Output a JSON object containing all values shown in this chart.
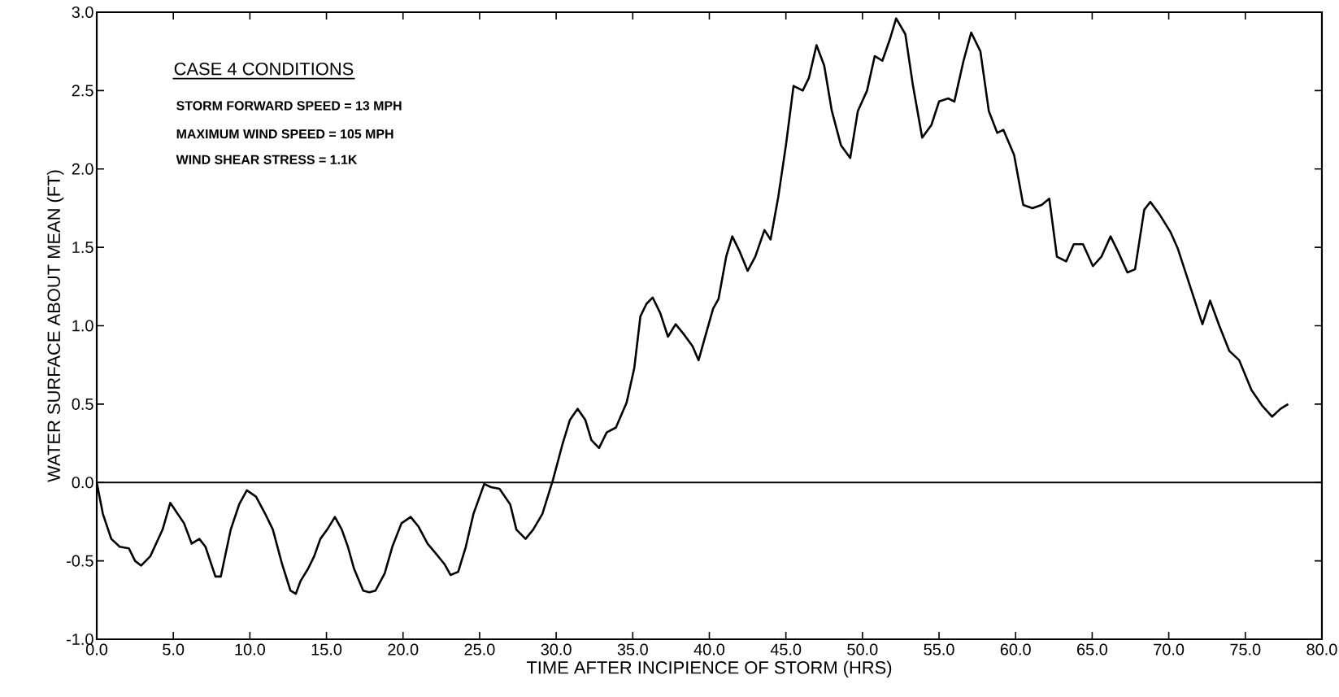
{
  "chart_data": {
    "type": "line",
    "xlabel": "TIME AFTER INCIPIENCE OF STORM (HRS)",
    "ylabel": "WATER SURFACE ABOUT MEAN (FT)",
    "annotations": [
      "CASE 4 CONDITIONS",
      "STORM FORWARD SPEED = 13 MPH",
      "MAXIMUM WIND SPEED = 105 MPH",
      "WIND SHEAR STRESS = 1.1K"
    ],
    "xlim": [
      0,
      80
    ],
    "ylim": [
      -1,
      3
    ],
    "xticks": [
      {
        "value": 0,
        "label": "0.0"
      },
      {
        "value": 5,
        "label": "5.0"
      },
      {
        "value": 10,
        "label": "10.0"
      },
      {
        "value": 15,
        "label": "15.0"
      },
      {
        "value": 20,
        "label": "20.0"
      },
      {
        "value": 25,
        "label": "25.0"
      },
      {
        "value": 30,
        "label": "30.0"
      },
      {
        "value": 35,
        "label": "35.0"
      },
      {
        "value": 40,
        "label": "40.0"
      },
      {
        "value": 45,
        "label": "45.0"
      },
      {
        "value": 50,
        "label": "50.0"
      },
      {
        "value": 55,
        "label": "55.0"
      },
      {
        "value": 60,
        "label": "60.0"
      },
      {
        "value": 65,
        "label": "65.0"
      },
      {
        "value": 70,
        "label": "70.0"
      },
      {
        "value": 75,
        "label": "75.0"
      },
      {
        "value": 80,
        "label": "80.0"
      }
    ],
    "yticks": [
      {
        "value": -1,
        "label": "-1.0"
      },
      {
        "value": -0.5,
        "label": "-0.5"
      },
      {
        "value": 0,
        "label": "0.0"
      },
      {
        "value": 0.5,
        "label": "0.5"
      },
      {
        "value": 1,
        "label": "1.0"
      },
      {
        "value": 1.5,
        "label": "1.5"
      },
      {
        "value": 2,
        "label": "2.0"
      },
      {
        "value": 2.5,
        "label": "2.5"
      },
      {
        "value": 3,
        "label": "3.0"
      }
    ],
    "ref_lines": [
      {
        "axis": "y",
        "value": 0,
        "color": "#000000",
        "line_style": "solid"
      }
    ],
    "grid": false,
    "marker": "none",
    "line_style": "solid",
    "series": [
      {
        "color": "#000000",
        "x": [
          0,
          0.4,
          0.95,
          1.5,
          2.1,
          2.5,
          2.9,
          3.5,
          4.3,
          4.8,
          5.7,
          6.2,
          6.7,
          7.1,
          7.75,
          8.1,
          8.75,
          9.3,
          9.8,
          10.4,
          11,
          11.5,
          12.1,
          12.65,
          13.0,
          13.3,
          13.8,
          14.2,
          14.6,
          15.05,
          15.55,
          16,
          16.4,
          16.8,
          17.4,
          17.8,
          18.2,
          18.8,
          19.3,
          19.9,
          20.5,
          21,
          21.6,
          22.2,
          22.7,
          23.1,
          23.6,
          24.1,
          24.6,
          25.3,
          25.75,
          26.3,
          27.0,
          27.4,
          28,
          28.5,
          29.1,
          29.8,
          30.4,
          30.9,
          31.4,
          31.9,
          32.3,
          32.8,
          33.3,
          33.9,
          34.6,
          35.1,
          35.5,
          35.9,
          36.3,
          36.8,
          37.3,
          37.8,
          38.3,
          38.9,
          39.3,
          39.7,
          40.25,
          40.6,
          41.1,
          41.5,
          42.0,
          42.5,
          43.0,
          43.6,
          44.0,
          44.5,
          45.0,
          45.5,
          46.1,
          46.5,
          47.0,
          47.5,
          48.0,
          48.6,
          49.2,
          49.7,
          50.3,
          50.8,
          51.3,
          51.8,
          52.2,
          52.8,
          53.3,
          53.9,
          54.5,
          55.0,
          55.6,
          56.0,
          56.6,
          57.1,
          57.7,
          58.25,
          58.8,
          59.2,
          59.9,
          60.5,
          61.1,
          61.7,
          62.2,
          62.7,
          63.3,
          63.8,
          64.4,
          65.05,
          65.6,
          66.2,
          66.7,
          67.3,
          67.8,
          68.4,
          68.8,
          69.4,
          70.1,
          70.6,
          71.5,
          72.2,
          72.7,
          73.3,
          73.95,
          74.6,
          75.4,
          76.1,
          76.75,
          77.3,
          77.8
        ],
        "values": [
          0.0,
          -0.2,
          -0.36,
          -0.41,
          -0.42,
          -0.5,
          -0.53,
          -0.47,
          -0.3,
          -0.13,
          -0.26,
          -0.39,
          -0.36,
          -0.41,
          -0.6,
          -0.6,
          -0.3,
          -0.14,
          -0.05,
          -0.09,
          -0.2,
          -0.3,
          -0.52,
          -0.69,
          -0.71,
          -0.63,
          -0.55,
          -0.47,
          -0.36,
          -0.3,
          -0.22,
          -0.3,
          -0.41,
          -0.55,
          -0.69,
          -0.7,
          -0.69,
          -0.58,
          -0.41,
          -0.26,
          -0.22,
          -0.28,
          -0.39,
          -0.46,
          -0.52,
          -0.59,
          -0.57,
          -0.41,
          -0.2,
          -0.01,
          -0.03,
          -0.04,
          -0.14,
          -0.3,
          -0.36,
          -0.3,
          -0.2,
          0.02,
          0.24,
          0.4,
          0.47,
          0.4,
          0.27,
          0.22,
          0.32,
          0.35,
          0.51,
          0.73,
          1.06,
          1.14,
          1.18,
          1.08,
          0.93,
          1.01,
          0.95,
          0.87,
          0.78,
          0.92,
          1.11,
          1.17,
          1.44,
          1.57,
          1.47,
          1.35,
          1.44,
          1.61,
          1.55,
          1.82,
          2.15,
          2.53,
          2.5,
          2.58,
          2.79,
          2.66,
          2.37,
          2.15,
          2.07,
          2.37,
          2.5,
          2.72,
          2.69,
          2.83,
          2.96,
          2.86,
          2.53,
          2.2,
          2.28,
          2.43,
          2.45,
          2.43,
          2.69,
          2.87,
          2.75,
          2.37,
          2.23,
          2.25,
          2.09,
          1.77,
          1.75,
          1.77,
          1.81,
          1.44,
          1.41,
          1.52,
          1.52,
          1.38,
          1.44,
          1.57,
          1.47,
          1.34,
          1.36,
          1.74,
          1.79,
          1.71,
          1.6,
          1.49,
          1.22,
          1.01,
          1.16,
          1.0,
          0.84,
          0.78,
          0.59,
          0.49,
          0.42,
          0.47,
          0.5
        ]
      }
    ]
  }
}
